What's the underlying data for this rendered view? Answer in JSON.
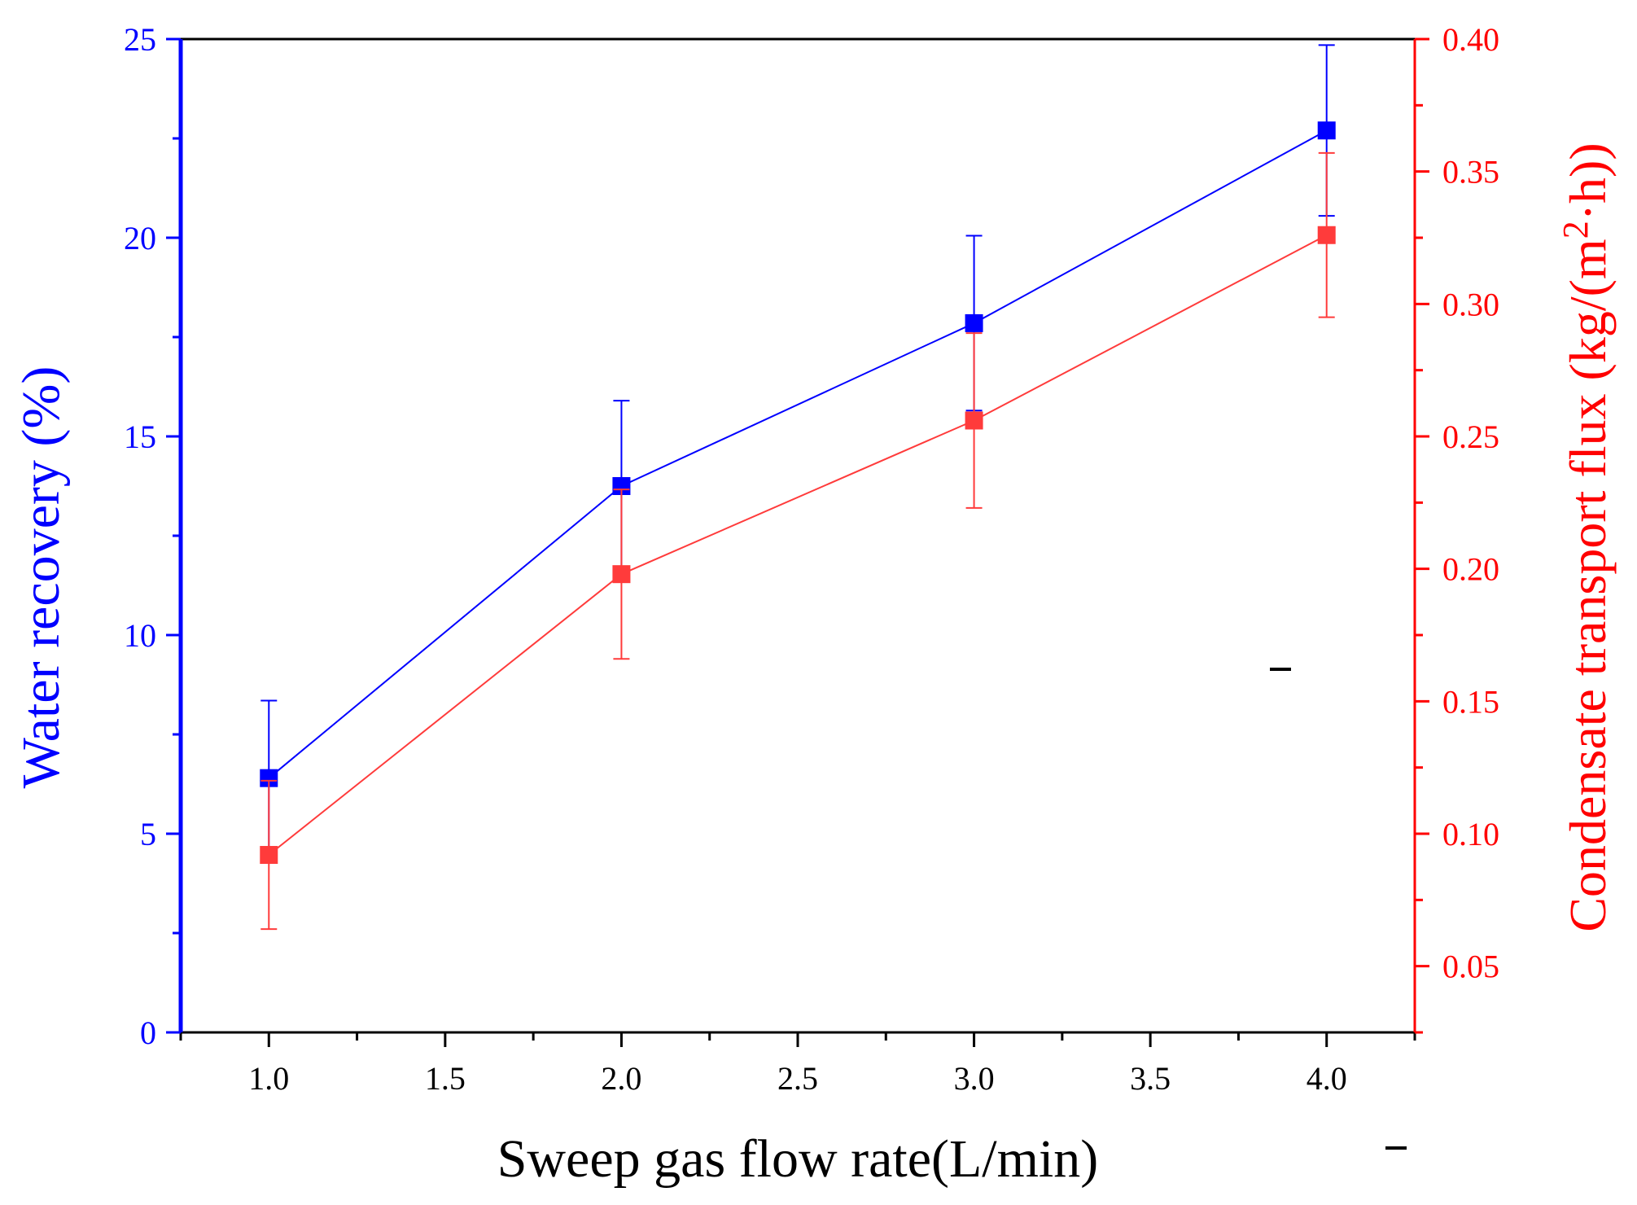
{
  "chart_data": {
    "type": "line",
    "xlabel": "Sweep gas flow rate(L/min)",
    "ylabel_left": "Water recovery (%)",
    "ylabel_right_prefix": "Condensate transport flux (kg/(m",
    "ylabel_right_sup": "2",
    "ylabel_right_suffix": "·h))",
    "xlim": [
      0.75,
      4.25
    ],
    "ylim_left": [
      0,
      25
    ],
    "ylim_right": [
      0.025,
      0.4
    ],
    "x_ticks": [
      "1.0",
      "1.5",
      "2.0",
      "2.5",
      "3.0",
      "3.5",
      "4.0"
    ],
    "y_left_ticks": [
      "0",
      "5",
      "10",
      "15",
      "20",
      "25"
    ],
    "y_right_ticks": [
      "0.05",
      "0.10",
      "0.15",
      "0.20",
      "0.25",
      "0.30",
      "0.35",
      "0.40"
    ],
    "series": [
      {
        "axis": "left",
        "color": "#0000ff",
        "marker": "square",
        "x": [
          1.0,
          2.0,
          3.0,
          4.0
        ],
        "y": [
          6.4,
          13.75,
          17.85,
          22.7
        ],
        "err": [
          1.95,
          2.15,
          2.2,
          2.15
        ]
      },
      {
        "axis": "right",
        "color": "#ff3b3b",
        "marker": "square",
        "x": [
          1.0,
          2.0,
          3.0,
          4.0
        ],
        "y": [
          0.092,
          0.198,
          0.256,
          0.326
        ],
        "err": [
          0.028,
          0.032,
          0.033,
          0.031
        ]
      }
    ],
    "grid": false,
    "colors": {
      "left_axis": "#0000ff",
      "right_axis": "#ff0000",
      "bottom_axis": "#000000"
    }
  }
}
